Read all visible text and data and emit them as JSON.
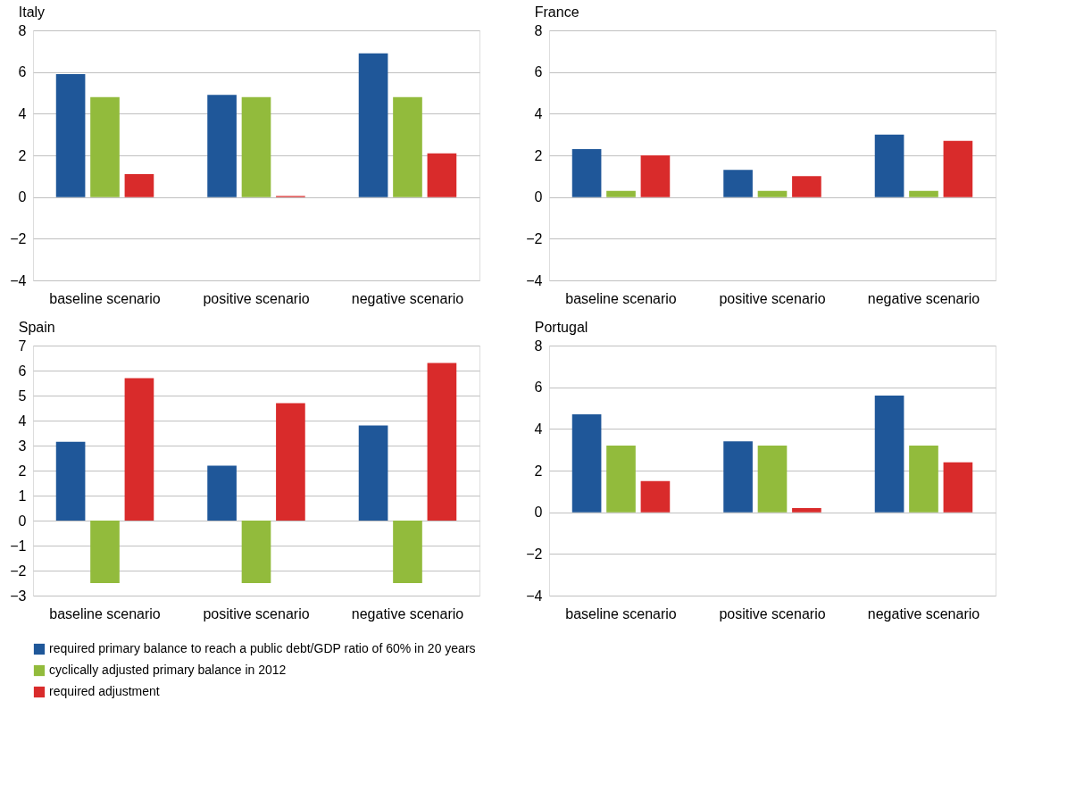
{
  "chart_data": [
    {
      "type": "bar",
      "title": "Italy",
      "categories": [
        "baseline scenario",
        "positive scenario",
        "negative scenario"
      ],
      "series": [
        {
          "color": "#1f5799",
          "values": [
            5.9,
            4.9,
            6.9
          ]
        },
        {
          "color": "#92bb3c",
          "values": [
            4.8,
            4.8,
            4.8
          ]
        },
        {
          "color": "#d92b2b",
          "values": [
            1.1,
            0.05,
            2.1
          ]
        }
      ],
      "ylim": [
        -4,
        8
      ],
      "yticks": [
        -4,
        -2,
        0,
        2,
        4,
        6,
        8
      ],
      "grid": "y"
    },
    {
      "type": "bar",
      "title": "France",
      "categories": [
        "baseline scenario",
        "positive scenario",
        "negative scenario"
      ],
      "series": [
        {
          "color": "#1f5799",
          "values": [
            2.3,
            1.3,
            3.0
          ]
        },
        {
          "color": "#92bb3c",
          "values": [
            0.3,
            0.3,
            0.3
          ]
        },
        {
          "color": "#d92b2b",
          "values": [
            2.0,
            1.0,
            2.7
          ]
        }
      ],
      "ylim": [
        -4,
        8
      ],
      "yticks": [
        -4,
        -2,
        0,
        2,
        4,
        6,
        8
      ],
      "grid": "y"
    },
    {
      "type": "bar",
      "title": "Spain",
      "categories": [
        "baseline scenario",
        "positive scenario",
        "negative scenario"
      ],
      "series": [
        {
          "name": "required primary balance to reach a public debt/GDP ratio of 60% in 20 years",
          "color": "#1f5799",
          "values": [
            3.15,
            2.2,
            3.8
          ]
        },
        {
          "name": "cyclically adjusted primary balance in 2012",
          "color": "#92bb3c",
          "values": [
            -2.5,
            -2.5,
            -2.5
          ]
        },
        {
          "name": "required adjustment",
          "color": "#d92b2b",
          "values": [
            5.7,
            4.7,
            6.3
          ]
        }
      ],
      "ylim": [
        -3,
        7
      ],
      "yticks": [
        -3,
        -2,
        -1,
        0,
        1,
        2,
        3,
        4,
        5,
        6,
        7
      ],
      "grid": "y",
      "legend": "bottom"
    },
    {
      "type": "bar",
      "title": "Portugal",
      "categories": [
        "baseline scenario",
        "positive scenario",
        "negative scenario"
      ],
      "series": [
        {
          "color": "#1f5799",
          "values": [
            4.7,
            3.4,
            5.6
          ]
        },
        {
          "color": "#92bb3c",
          "values": [
            3.2,
            3.2,
            3.2
          ]
        },
        {
          "color": "#d92b2b",
          "values": [
            1.5,
            0.2,
            2.4
          ]
        }
      ],
      "ylim": [
        -4,
        8
      ],
      "yticks": [
        -4,
        -2,
        0,
        2,
        4,
        6,
        8
      ],
      "grid": "y"
    }
  ]
}
